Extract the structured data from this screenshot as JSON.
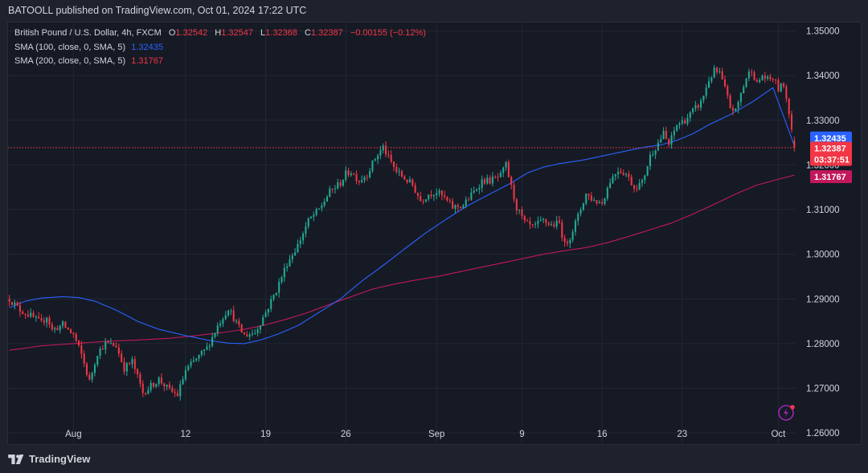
{
  "publisher": "BATOOLL published on TradingView.com, Oct 01, 2024 17:22 UTC",
  "footer_brand": "TradingView",
  "legend": {
    "symbol": "British Pound / U.S. Dollar, 4h, FXCM",
    "o_label": "O",
    "o": "1.32542",
    "h_label": "H",
    "h": "1.32547",
    "l_label": "L",
    "l": "1.32368",
    "c_label": "C",
    "c": "1.32387",
    "change": "−0.00155 (−0.12%)",
    "sma100": "SMA (100, close, 0, SMA, 5)",
    "sma100_value": "1.32435",
    "sma200": "SMA (200, close, 0, SMA, 5)",
    "sma200_value": "1.31767"
  },
  "price_labels": {
    "sma100": "1.32435",
    "last": "1.32387",
    "countdown": "03:37:51",
    "sma200": "1.31767"
  },
  "colors": {
    "bull": "#22ab94",
    "bear": "#f23645",
    "sma100": "#2962ff",
    "sma200": "#c2185b",
    "last_price": "#f23645",
    "grid": "#232733"
  },
  "icons": [
    "tradingview-logo-icon",
    "lightning-icon"
  ],
  "chart_data": {
    "type": "candlestick",
    "title": "British Pound / U.S. Dollar, 4h, FXCM",
    "y_ticks": [
      "1.35000",
      "1.34000",
      "1.33000",
      "1.32000",
      "1.31000",
      "1.30000",
      "1.29000",
      "1.28000",
      "1.27000",
      "1.26000"
    ],
    "y_tick_values": [
      1.35,
      1.34,
      1.33,
      1.32,
      1.31,
      1.3,
      1.29,
      1.28,
      1.27,
      1.26
    ],
    "ylim": [
      1.2575,
      1.3519
    ],
    "x_ticks": [
      "Aug",
      "12",
      "19",
      "26",
      "Sep",
      "9",
      "16",
      "23",
      "Oct"
    ],
    "x_tick_positions_bars": [
      24,
      66,
      96,
      126,
      160,
      192,
      222,
      252,
      288
    ],
    "grid": true,
    "bars_count": 295,
    "close_path": [
      [
        0,
        1.29
      ],
      [
        4,
        1.2875
      ],
      [
        8,
        1.2862
      ],
      [
        12,
        1.2845
      ],
      [
        14,
        1.2862
      ],
      [
        16,
        1.283
      ],
      [
        20,
        1.2842
      ],
      [
        24,
        1.282
      ],
      [
        27,
        1.2775
      ],
      [
        30,
        1.2715
      ],
      [
        33,
        1.278
      ],
      [
        36,
        1.28
      ],
      [
        40,
        1.2795
      ],
      [
        43,
        1.2745
      ],
      [
        46,
        1.276
      ],
      [
        50,
        1.269
      ],
      [
        53,
        1.2705
      ],
      [
        56,
        1.272
      ],
      [
        60,
        1.2695
      ],
      [
        63,
        1.2685
      ],
      [
        66,
        1.274
      ],
      [
        70,
        1.2765
      ],
      [
        74,
        1.279
      ],
      [
        78,
        1.284
      ],
      [
        82,
        1.288
      ],
      [
        86,
        1.2835
      ],
      [
        88,
        1.2818
      ],
      [
        92,
        1.2825
      ],
      [
        96,
        1.287
      ],
      [
        100,
        1.292
      ],
      [
        104,
        1.298
      ],
      [
        108,
        1.302
      ],
      [
        112,
        1.3075
      ],
      [
        116,
        1.31
      ],
      [
        120,
        1.314
      ],
      [
        124,
        1.316
      ],
      [
        126,
        1.318
      ],
      [
        128,
        1.3185
      ],
      [
        131,
        1.3165
      ],
      [
        134,
        1.318
      ],
      [
        137,
        1.3215
      ],
      [
        140,
        1.324
      ],
      [
        142,
        1.3215
      ],
      [
        145,
        1.3185
      ],
      [
        148,
        1.317
      ],
      [
        151,
        1.3155
      ],
      [
        154,
        1.312
      ],
      [
        157,
        1.3135
      ],
      [
        160,
        1.314
      ],
      [
        163,
        1.3125
      ],
      [
        166,
        1.3105
      ],
      [
        170,
        1.311
      ],
      [
        174,
        1.314
      ],
      [
        177,
        1.3165
      ],
      [
        180,
        1.3165
      ],
      [
        184,
        1.3175
      ],
      [
        186,
        1.32
      ],
      [
        188,
        1.315
      ],
      [
        190,
        1.3105
      ],
      [
        193,
        1.307
      ],
      [
        196,
        1.306
      ],
      [
        200,
        1.3075
      ],
      [
        203,
        1.3065
      ],
      [
        206,
        1.307
      ],
      [
        208,
        1.302
      ],
      [
        210,
        1.304
      ],
      [
        213,
        1.3085
      ],
      [
        216,
        1.3135
      ],
      [
        219,
        1.312
      ],
      [
        222,
        1.3115
      ],
      [
        225,
        1.3165
      ],
      [
        228,
        1.319
      ],
      [
        231,
        1.318
      ],
      [
        234,
        1.315
      ],
      [
        237,
        1.316
      ],
      [
        240,
        1.322
      ],
      [
        243,
        1.325
      ],
      [
        245,
        1.327
      ],
      [
        247,
        1.3245
      ],
      [
        250,
        1.329
      ],
      [
        253,
        1.33
      ],
      [
        256,
        1.332
      ],
      [
        259,
        1.334
      ],
      [
        262,
        1.339
      ],
      [
        264,
        1.341
      ],
      [
        266,
        1.3405
      ],
      [
        268,
        1.337
      ],
      [
        270,
        1.333
      ],
      [
        272,
        1.332
      ],
      [
        274,
        1.336
      ],
      [
        276,
        1.3395
      ],
      [
        278,
        1.3415
      ],
      [
        280,
        1.338
      ],
      [
        282,
        1.34
      ],
      [
        284,
        1.339
      ],
      [
        286,
        1.3395
      ],
      [
        288,
        1.337
      ],
      [
        290,
        1.338
      ],
      [
        292,
        1.332
      ],
      [
        293,
        1.328
      ],
      [
        294,
        1.3239
      ]
    ],
    "sma100": [
      [
        0,
        1.288
      ],
      [
        6,
        1.2895
      ],
      [
        12,
        1.2902
      ],
      [
        20,
        1.2905
      ],
      [
        26,
        1.2903
      ],
      [
        32,
        1.2895
      ],
      [
        40,
        1.2875
      ],
      [
        48,
        1.285
      ],
      [
        56,
        1.2832
      ],
      [
        66,
        1.2818
      ],
      [
        74,
        1.2808
      ],
      [
        82,
        1.2801
      ],
      [
        88,
        1.28
      ],
      [
        94,
        1.2808
      ],
      [
        100,
        1.282
      ],
      [
        108,
        1.284
      ],
      [
        116,
        1.287
      ],
      [
        124,
        1.29
      ],
      [
        132,
        1.294
      ],
      [
        140,
        1.2975
      ],
      [
        148,
        1.3012
      ],
      [
        156,
        1.3048
      ],
      [
        164,
        1.308
      ],
      [
        172,
        1.311
      ],
      [
        180,
        1.3135
      ],
      [
        188,
        1.316
      ],
      [
        194,
        1.3182
      ],
      [
        200,
        1.3195
      ],
      [
        206,
        1.3203
      ],
      [
        214,
        1.321
      ],
      [
        222,
        1.322
      ],
      [
        230,
        1.323
      ],
      [
        238,
        1.324
      ],
      [
        244,
        1.3245
      ],
      [
        250,
        1.3255
      ],
      [
        256,
        1.327
      ],
      [
        262,
        1.329
      ],
      [
        270,
        1.3313
      ],
      [
        278,
        1.334
      ],
      [
        286,
        1.3373
      ],
      [
        294,
        1.3243
      ]
    ],
    "sma200": [
      [
        0,
        1.2785
      ],
      [
        12,
        1.2795
      ],
      [
        24,
        1.28
      ],
      [
        36,
        1.2805
      ],
      [
        48,
        1.2808
      ],
      [
        60,
        1.2812
      ],
      [
        70,
        1.2818
      ],
      [
        80,
        1.2825
      ],
      [
        88,
        1.2832
      ],
      [
        96,
        1.2842
      ],
      [
        104,
        1.2855
      ],
      [
        112,
        1.287
      ],
      [
        120,
        1.2888
      ],
      [
        128,
        1.2905
      ],
      [
        136,
        1.2922
      ],
      [
        144,
        1.2933
      ],
      [
        152,
        1.2942
      ],
      [
        160,
        1.295
      ],
      [
        168,
        1.296
      ],
      [
        176,
        1.297
      ],
      [
        184,
        1.298
      ],
      [
        192,
        1.299
      ],
      [
        200,
        1.3
      ],
      [
        208,
        1.3008
      ],
      [
        216,
        1.3015
      ],
      [
        224,
        1.3026
      ],
      [
        232,
        1.304
      ],
      [
        240,
        1.3055
      ],
      [
        248,
        1.307
      ],
      [
        256,
        1.309
      ],
      [
        264,
        1.3112
      ],
      [
        272,
        1.3135
      ],
      [
        280,
        1.3155
      ],
      [
        288,
        1.3168
      ],
      [
        294,
        1.3177
      ]
    ],
    "last_price": 1.32387
  }
}
